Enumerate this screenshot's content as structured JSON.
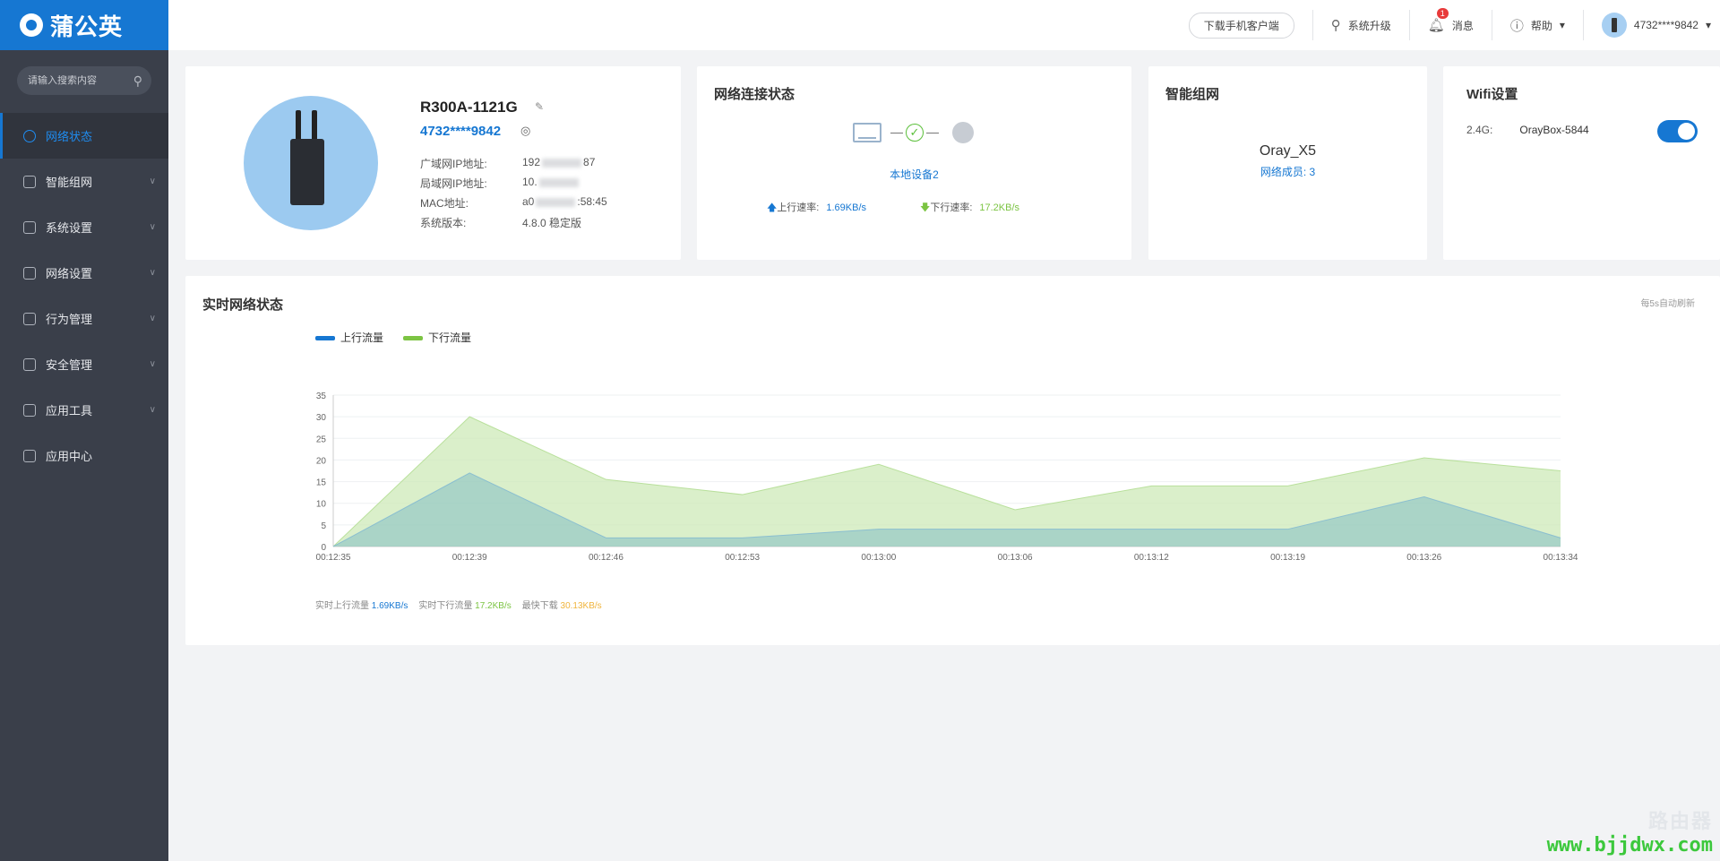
{
  "brand": {
    "name": "蒲公英"
  },
  "search": {
    "placeholder": "请输入搜索内容"
  },
  "sidebar": {
    "items": [
      {
        "label": "网络状态",
        "icon": "network-status-icon",
        "active": true
      },
      {
        "label": "智能组网",
        "icon": "smart-network-icon"
      },
      {
        "label": "系统设置",
        "icon": "gear-icon"
      },
      {
        "label": "网络设置",
        "icon": "network-settings-icon"
      },
      {
        "label": "行为管理",
        "icon": "behavior-icon"
      },
      {
        "label": "安全管理",
        "icon": "shield-icon"
      },
      {
        "label": "应用工具",
        "icon": "toolbox-icon"
      },
      {
        "label": "应用中心",
        "icon": "cube-icon"
      }
    ]
  },
  "header": {
    "download_label": "下载手机客户端",
    "upgrade_label": "系统升级",
    "messages_label": "消息",
    "messages_badge": "1",
    "help_label": "帮助",
    "user": "4732****9842"
  },
  "device": {
    "model": "R300A-1121G",
    "id": "4732****9842",
    "rows": {
      "wan": {
        "label": "广域网IP地址:",
        "prefix": "192",
        "suffix": "87"
      },
      "lan": {
        "label": "局域网IP地址:",
        "prefix": "10.",
        "suffix": ""
      },
      "mac": {
        "label": "MAC地址:",
        "prefix": "a0",
        "suffix": ":58:45"
      },
      "version": {
        "label": "系统版本:",
        "value": "4.8.0 稳定版"
      }
    }
  },
  "connection": {
    "title": "网络连接状态",
    "local_devices": "本地设备2",
    "upload_label": "上行速率:",
    "upload_value": "1.69KB/s",
    "download_label": "下行速率:",
    "download_value": "17.2KB/s"
  },
  "smart": {
    "title": "智能组网",
    "network_name": "Oray_X5",
    "members": "网络成员: 3"
  },
  "wifi": {
    "title": "Wifi设置",
    "band": "2.4G:",
    "ssid": "OrayBox-5844",
    "enabled": true
  },
  "realtime": {
    "title": "实时网络状态",
    "refresh_note": "每5s自动刷新",
    "stats": {
      "up_label": "实时上行流量",
      "up_value": "1.69KB/s",
      "down_label": "实时下行流量",
      "down_value": "17.2KB/s",
      "max_label": "最快下载",
      "max_value": "30.13KB/s"
    }
  },
  "chart_data": {
    "type": "area",
    "categories": [
      "00:12:35",
      "00:12:39",
      "00:12:46",
      "00:12:53",
      "00:13:00",
      "00:13:06",
      "00:13:12",
      "00:13:19",
      "00:13:26",
      "00:13:34"
    ],
    "series": [
      {
        "name": "上行流量",
        "color": "#1677d2",
        "values": [
          0,
          17,
          2,
          2,
          4,
          4,
          4,
          4,
          11.5,
          2
        ]
      },
      {
        "name": "下行流量",
        "color": "#7cc443",
        "values": [
          0,
          30,
          15.5,
          12,
          19,
          8.5,
          14,
          14,
          20.5,
          17.5
        ]
      }
    ],
    "ylim": [
      0,
      35
    ],
    "yticks": [
      0,
      5,
      10,
      15,
      20,
      25,
      30,
      35
    ],
    "grid": true,
    "legend": "top-left"
  },
  "watermark": {
    "logo": "路由器",
    "url": "www.bjjdwx.com"
  }
}
